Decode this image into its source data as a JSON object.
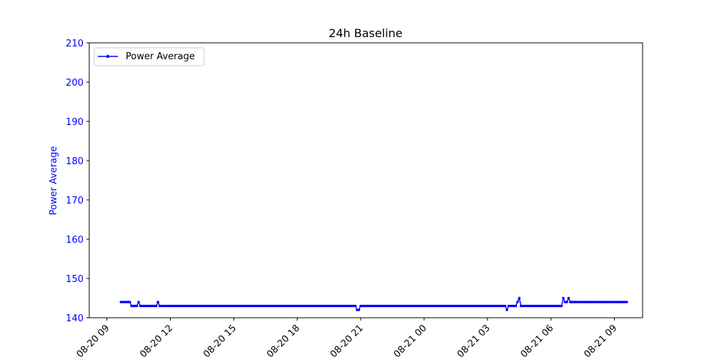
{
  "chart_data": {
    "type": "line",
    "title": "24h Baseline",
    "ylabel": "Power Average",
    "xlabel": "",
    "ylim": [
      140,
      210
    ],
    "xlim": [
      "2024-08-20 08:10",
      "2024-08-21 10:20"
    ],
    "yticks": [
      140,
      150,
      160,
      170,
      180,
      190,
      200,
      210
    ],
    "xticks": [
      {
        "at": "2024-08-20 09:00",
        "label": "08-20 09"
      },
      {
        "at": "2024-08-20 12:00",
        "label": "08-20 12"
      },
      {
        "at": "2024-08-20 15:00",
        "label": "08-20 15"
      },
      {
        "at": "2024-08-20 18:00",
        "label": "08-20 18"
      },
      {
        "at": "2024-08-20 21:00",
        "label": "08-20 21"
      },
      {
        "at": "2024-08-21 00:00",
        "label": "08-21 00"
      },
      {
        "at": "2024-08-21 03:00",
        "label": "08-21 03"
      },
      {
        "at": "2024-08-21 06:00",
        "label": "08-21 06"
      },
      {
        "at": "2024-08-21 09:00",
        "label": "08-21 09"
      }
    ],
    "legend_position": "upper-left",
    "grid": false,
    "colors": {
      "series": "#0000ff",
      "axis_labels": "#0000ff"
    },
    "series": [
      {
        "name": "Power Average",
        "x_start": "2024-08-20 09:40",
        "interval_minutes": 5,
        "segments": [
          {
            "y": 144,
            "count": 6
          },
          {
            "y": 143,
            "count": 4
          },
          {
            "y": 144,
            "count": 1
          },
          {
            "y": 143,
            "count": 10
          },
          {
            "y": 144,
            "count": 1
          },
          {
            "y": 143,
            "count": 112
          },
          {
            "y": 142,
            "count": 2
          },
          {
            "y": 143,
            "count": 83
          },
          {
            "y": 142,
            "count": 1
          },
          {
            "y": 143,
            "count": 5
          },
          {
            "y": 144,
            "count": 1
          },
          {
            "y": 145,
            "count": 1
          },
          {
            "y": 143,
            "count": 24
          },
          {
            "y": 145,
            "count": 1
          },
          {
            "y": 144,
            "count": 2
          },
          {
            "y": 145,
            "count": 1
          },
          {
            "y": 144,
            "count": 33
          }
        ]
      }
    ]
  }
}
